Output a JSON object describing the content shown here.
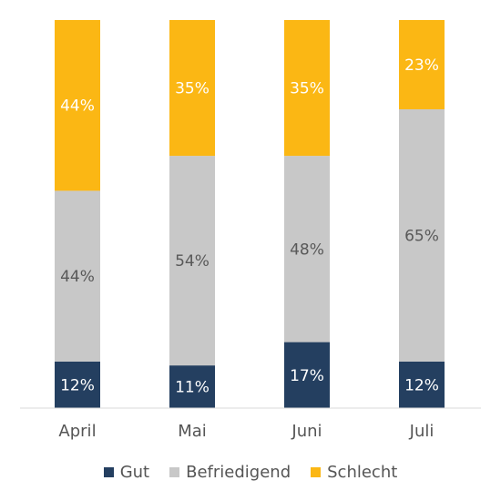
{
  "chart_data": {
    "type": "bar",
    "stacked": true,
    "normalized_percent": true,
    "categories": [
      "April",
      "Mai",
      "Juni",
      "Juli"
    ],
    "series": [
      {
        "name": "Gut",
        "values": [
          12,
          11,
          17,
          12
        ],
        "labels": [
          "12%",
          "11%",
          "17%",
          "12%"
        ],
        "color": "#243f60",
        "label_color": "#ffffff"
      },
      {
        "name": "Befriedigend",
        "values": [
          44,
          54,
          48,
          65
        ],
        "labels": [
          "44%",
          "54%",
          "48%",
          "65%"
        ],
        "color": "#c8c8c8",
        "label_color": "#595959"
      },
      {
        "name": "Schlecht",
        "values": [
          44,
          35,
          35,
          23
        ],
        "labels": [
          "44%",
          "35%",
          "35%",
          "23%"
        ],
        "color": "#fbb714",
        "label_color": "#ffffff"
      }
    ],
    "legend_position": "bottom",
    "grid": false,
    "title": "",
    "xlabel": "",
    "ylabel": ""
  }
}
